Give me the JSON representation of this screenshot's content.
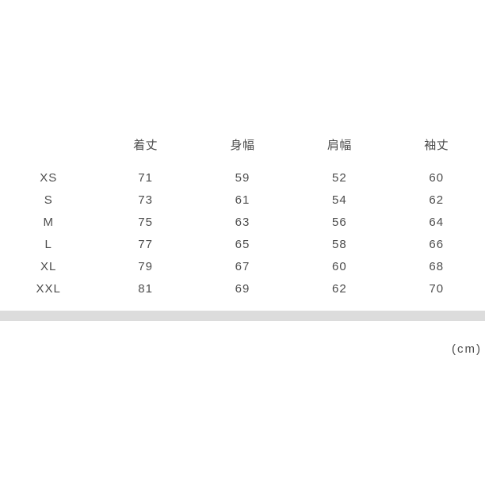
{
  "chart_data": {
    "type": "table",
    "title": "",
    "columns": [
      "着丈",
      "身幅",
      "肩幅",
      "袖丈"
    ],
    "row_labels": [
      "XS",
      "S",
      "M",
      "L",
      "XL",
      "XXL"
    ],
    "rows": [
      [
        71,
        59,
        52,
        60
      ],
      [
        73,
        61,
        54,
        62
      ],
      [
        75,
        63,
        56,
        64
      ],
      [
        77,
        65,
        58,
        66
      ],
      [
        79,
        67,
        60,
        68
      ],
      [
        81,
        69,
        62,
        70
      ]
    ],
    "unit_label": "(cm)",
    "layout": "5 equal centered columns, no gridlines, header row then 6 size rows"
  },
  "colors": {
    "background": "#ffffff",
    "text": "#4d4d4d",
    "divider_bar": "#dcdcdc"
  }
}
